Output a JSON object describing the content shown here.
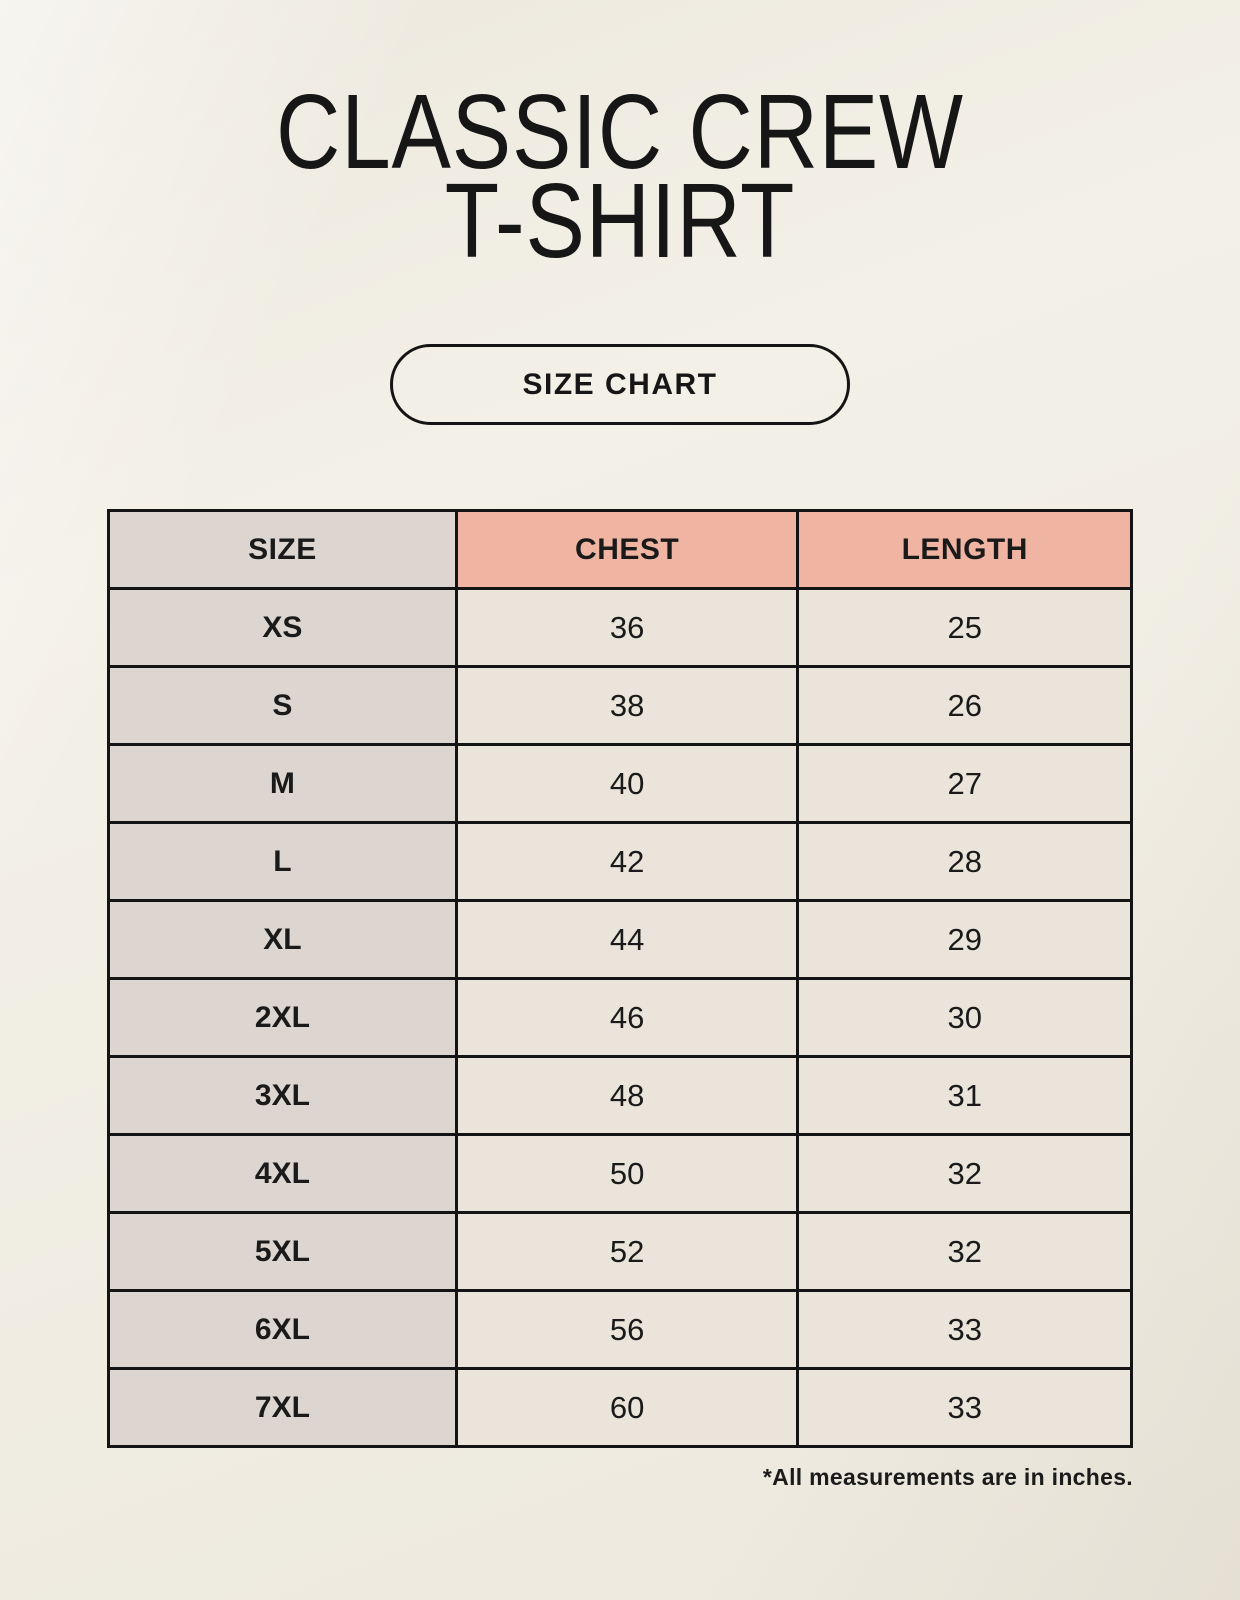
{
  "page": {
    "title_line1": "CLASSIC CREW",
    "title_line2": "T-SHIRT",
    "size_chart_label": "SIZE CHART",
    "footnote": "*All measurements are in inches."
  },
  "table": {
    "columns": [
      "SIZE",
      "CHEST",
      "LENGTH"
    ],
    "rows": [
      {
        "size": "XS",
        "chest": "36",
        "length": "25"
      },
      {
        "size": "S",
        "chest": "38",
        "length": "26"
      },
      {
        "size": "M",
        "chest": "40",
        "length": "27"
      },
      {
        "size": "L",
        "chest": "42",
        "length": "28"
      },
      {
        "size": "XL",
        "chest": "44",
        "length": "29"
      },
      {
        "size": "2XL",
        "chest": "46",
        "length": "30"
      },
      {
        "size": "3XL",
        "chest": "48",
        "length": "31"
      },
      {
        "size": "4XL",
        "chest": "50",
        "length": "32"
      },
      {
        "size": "5XL",
        "chest": "52",
        "length": "32"
      },
      {
        "size": "6XL",
        "chest": "56",
        "length": "33"
      },
      {
        "size": "7XL",
        "chest": "60",
        "length": "33"
      }
    ]
  },
  "colors": {
    "background": "#f3f0e7",
    "header_accent": "#f0b4a2",
    "size_column": "#ddd6d0",
    "data_cell": "#eae4da",
    "border": "#141414",
    "text": "#1a1a1a"
  }
}
